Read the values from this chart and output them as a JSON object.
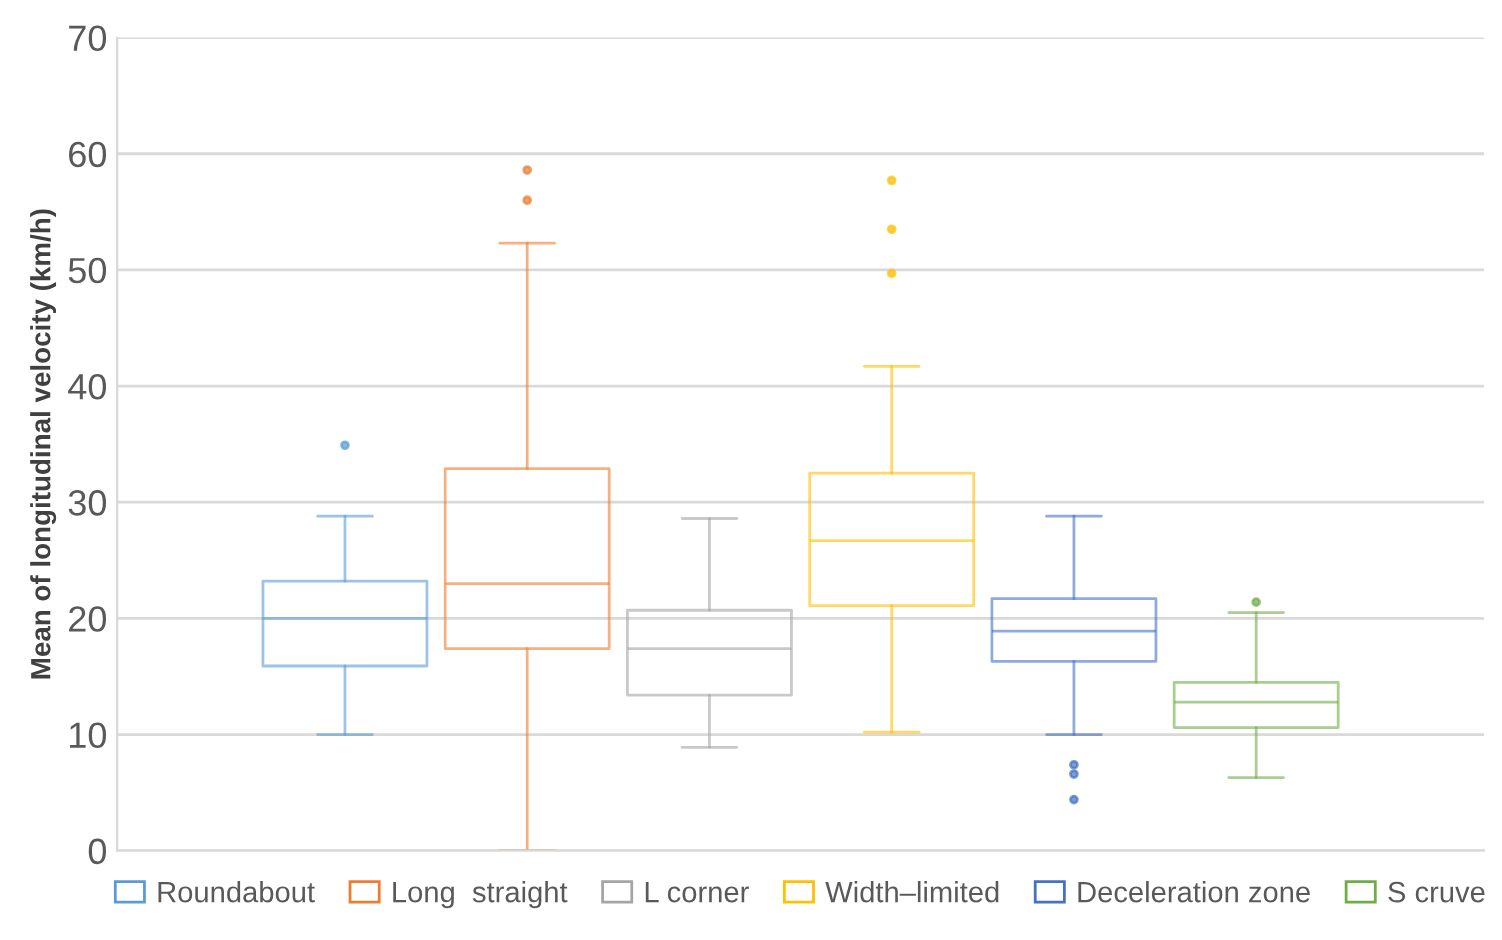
{
  "chart_data": {
    "type": "box",
    "ylabel": "Mean of longitudinal velocity (km/h)",
    "categories": [
      null
    ],
    "ylim": [
      0,
      70
    ],
    "yticks": [
      0,
      10,
      20,
      30,
      40,
      50,
      60,
      70
    ],
    "grid": "y",
    "legend": "bottom",
    "series": [
      {
        "name": "Roundabout",
        "color": "#5b9bd5",
        "boxes": [
          {
            "low": 10.0,
            "q1": 15.9,
            "median": 20.0,
            "q3": 23.2,
            "high": 28.8,
            "outliers": [
              34.9
            ]
          }
        ]
      },
      {
        "name": "Long  straight",
        "color": "#ed7d31",
        "boxes": [
          {
            "low": 0,
            "q1": 17.4,
            "median": 23.0,
            "q3": 32.9,
            "high": 52.3,
            "outliers": [
              56.0,
              58.6
            ]
          }
        ]
      },
      {
        "name": "L corner",
        "color": "#a5a5a5",
        "boxes": [
          {
            "low": 8.9,
            "q1": 13.4,
            "median": 17.4,
            "q3": 20.7,
            "high": 28.6
          }
        ]
      },
      {
        "name": "Width–limited",
        "color": "#ffc000",
        "boxes": [
          {
            "low": 10.2,
            "q1": 21.1,
            "median": 26.7,
            "q3": 32.5,
            "high": 41.7,
            "outliers": [
              49.7,
              53.5,
              57.7
            ]
          }
        ]
      },
      {
        "name": "Deceleration zone",
        "color": "#4472c4",
        "boxes": [
          {
            "low": 10.0,
            "q1": 16.3,
            "median": 18.9,
            "q3": 21.7,
            "high": 28.8,
            "outliers": [
              4.4,
              6.6,
              7.4
            ]
          }
        ]
      },
      {
        "name": "S cruve",
        "color": "#70ad47",
        "boxes": [
          {
            "low": 6.3,
            "q1": 10.6,
            "median": 12.8,
            "q3": 14.5,
            "high": 20.5,
            "outliers": [
              21.4
            ]
          }
        ]
      }
    ]
  }
}
